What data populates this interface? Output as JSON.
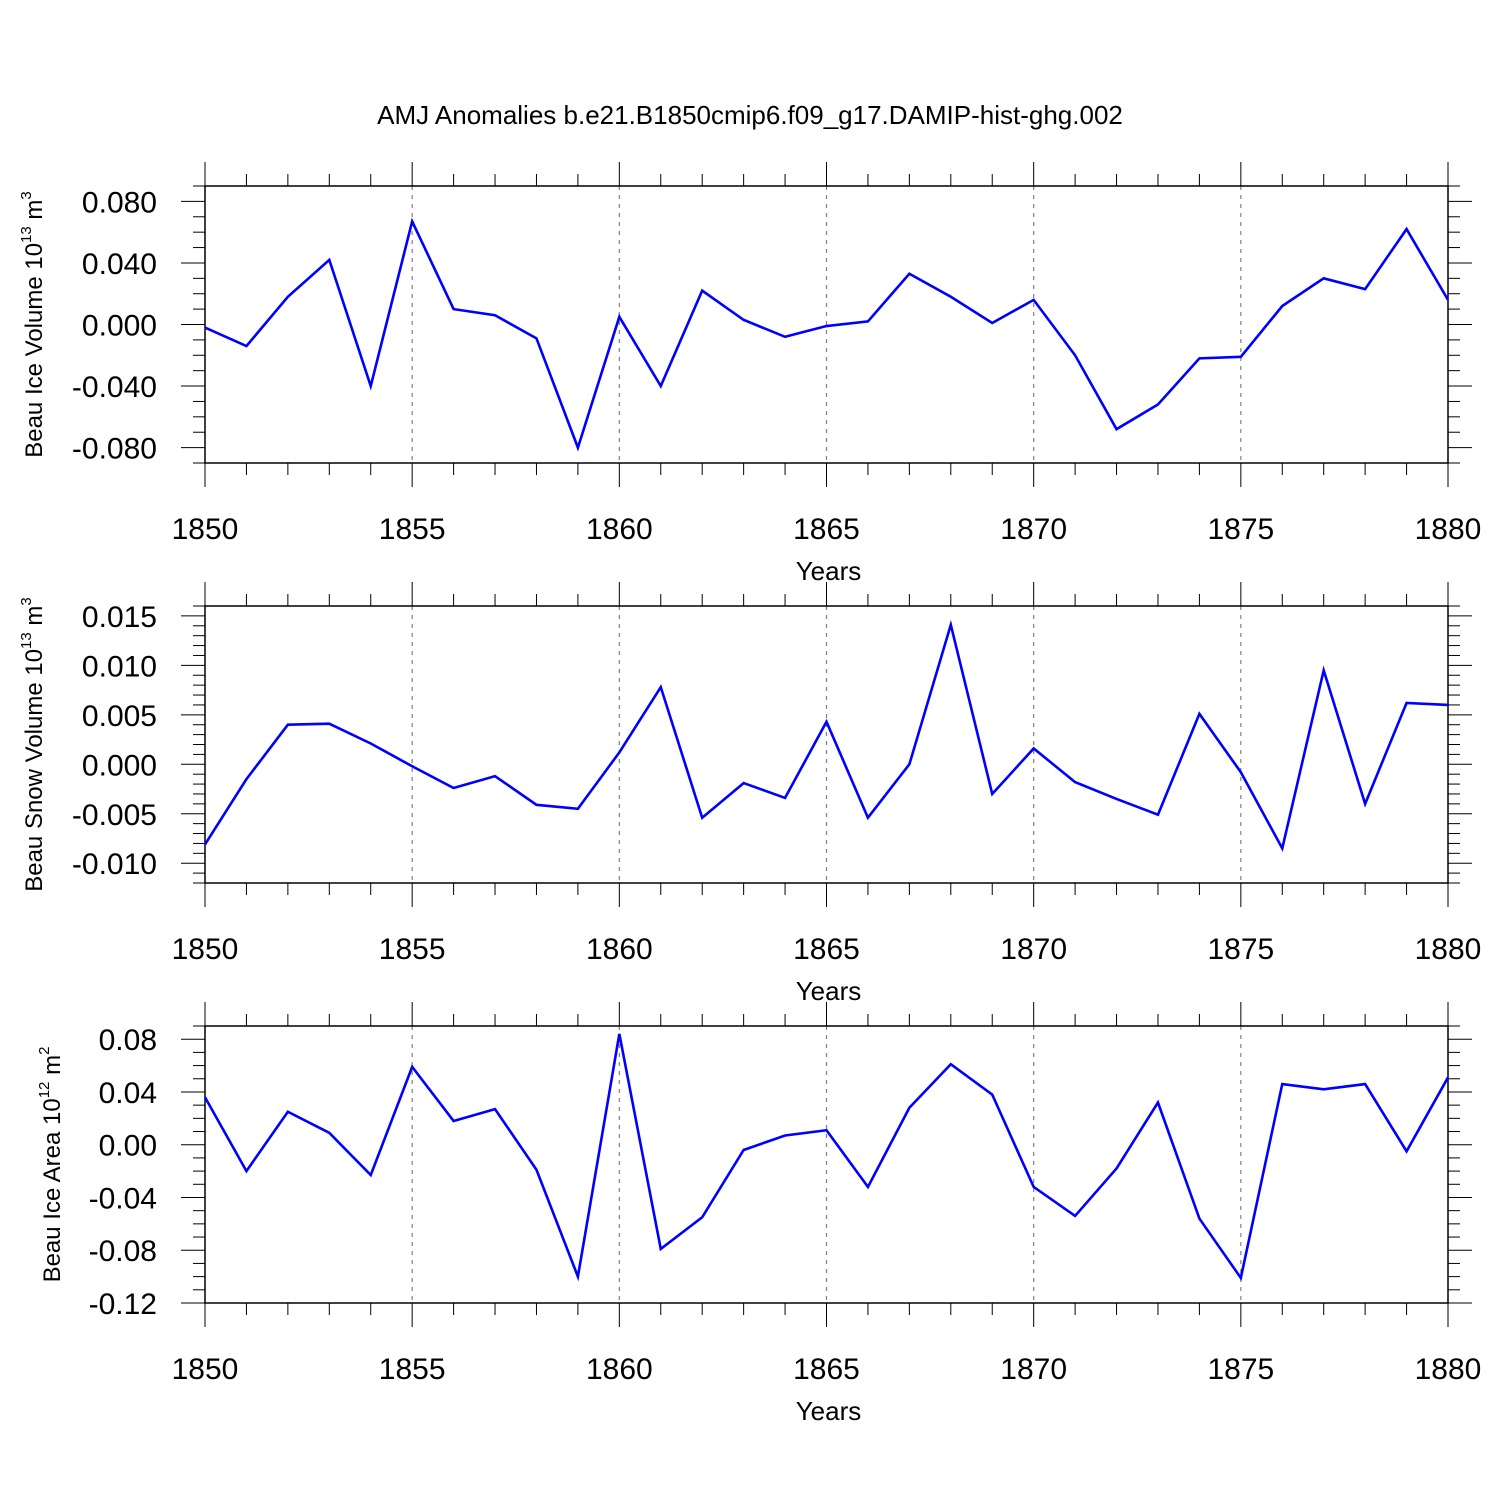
{
  "title": "AMJ Anomalies b.e21.B1850cmip6.f09_g17.DAMIP-hist-ghg.002",
  "colors": {
    "line": "#0000ff",
    "axis": "#000000",
    "grid": "#808080"
  },
  "chart_data": [
    {
      "type": "line",
      "xlabel": "Years",
      "ylabel_main": "Beau Ice Volume 10",
      "ylabel_exp": "13",
      "ylabel_unit": " m",
      "ylabel_unit_exp": "3",
      "xlim": [
        1850,
        1880
      ],
      "ylim": [
        -0.09,
        0.09
      ],
      "x_ticks": [
        1850,
        1855,
        1860,
        1865,
        1870,
        1875,
        1880
      ],
      "x_tick_labels": [
        "1850",
        "1855",
        "1860",
        "1865",
        "1870",
        "1875",
        "1880"
      ],
      "y_ticks": [
        -0.08,
        -0.04,
        0.0,
        0.04,
        0.08
      ],
      "y_tick_labels": [
        "-0.080",
        "-0.040",
        "0.000",
        "0.040",
        "0.080"
      ],
      "y_minor_step": 0.01,
      "grid": "vertical dashed at major x ticks",
      "x": [
        1850,
        1851,
        1852,
        1853,
        1854,
        1855,
        1856,
        1857,
        1858,
        1859,
        1860,
        1861,
        1862,
        1863,
        1864,
        1865,
        1866,
        1867,
        1868,
        1869,
        1870,
        1871,
        1872,
        1873,
        1874,
        1875,
        1876,
        1877,
        1878,
        1879,
        1880
      ],
      "series": [
        {
          "values": [
            -0.002,
            -0.014,
            0.018,
            0.042,
            -0.04,
            0.067,
            0.01,
            0.006,
            -0.009,
            -0.08,
            0.005,
            -0.04,
            0.022,
            0.003,
            -0.008,
            -0.001,
            0.002,
            0.033,
            0.018,
            0.001,
            0.016,
            -0.02,
            -0.068,
            -0.052,
            -0.022,
            -0.021,
            0.012,
            0.03,
            0.023,
            0.062,
            0.016
          ]
        }
      ]
    },
    {
      "type": "line",
      "xlabel": "Years",
      "ylabel_main": "Beau Snow Volume 10",
      "ylabel_exp": "13",
      "ylabel_unit": " m",
      "ylabel_unit_exp": "3",
      "xlim": [
        1850,
        1880
      ],
      "ylim": [
        -0.012,
        0.016
      ],
      "x_ticks": [
        1850,
        1855,
        1860,
        1865,
        1870,
        1875,
        1880
      ],
      "x_tick_labels": [
        "1850",
        "1855",
        "1860",
        "1865",
        "1870",
        "1875",
        "1880"
      ],
      "y_ticks": [
        -0.01,
        -0.005,
        0.0,
        0.005,
        0.01,
        0.015
      ],
      "y_tick_labels": [
        "-0.010",
        "-0.005",
        "0.000",
        "0.005",
        "0.010",
        "0.015"
      ],
      "y_minor_step": 0.001,
      "grid": "vertical dashed at major x ticks",
      "x": [
        1850,
        1851,
        1852,
        1853,
        1854,
        1855,
        1856,
        1857,
        1858,
        1859,
        1860,
        1861,
        1862,
        1863,
        1864,
        1865,
        1866,
        1867,
        1868,
        1869,
        1870,
        1871,
        1872,
        1873,
        1874,
        1875,
        1876,
        1877,
        1878,
        1879,
        1880
      ],
      "series": [
        {
          "values": [
            -0.0081,
            -0.0015,
            0.004,
            0.0041,
            0.0021,
            -0.0002,
            -0.0024,
            -0.0012,
            -0.0041,
            -0.0045,
            0.0012,
            0.0078,
            -0.0054,
            -0.0019,
            -0.0034,
            0.0043,
            -0.0054,
            0.0,
            0.0141,
            -0.003,
            0.0016,
            -0.0018,
            -0.0035,
            -0.0051,
            0.0051,
            -0.0008,
            -0.0085,
            0.0095,
            -0.004,
            0.0062,
            0.006
          ]
        }
      ]
    },
    {
      "type": "line",
      "xlabel": "Years",
      "ylabel_main": "Beau Ice Area 10",
      "ylabel_exp": "12",
      "ylabel_unit": " m",
      "ylabel_unit_exp": "2",
      "xlim": [
        1850,
        1880
      ],
      "ylim": [
        -0.12,
        0.09
      ],
      "x_ticks": [
        1850,
        1855,
        1860,
        1865,
        1870,
        1875,
        1880
      ],
      "x_tick_labels": [
        "1850",
        "1855",
        "1860",
        "1865",
        "1870",
        "1875",
        "1880"
      ],
      "y_ticks": [
        -0.12,
        -0.08,
        -0.04,
        0.0,
        0.04,
        0.08
      ],
      "y_tick_labels": [
        "-0.12",
        "-0.08",
        "-0.04",
        "0.00",
        "0.04",
        "0.08"
      ],
      "y_minor_step": 0.01,
      "grid": "vertical dashed at major x ticks",
      "x": [
        1850,
        1851,
        1852,
        1853,
        1854,
        1855,
        1856,
        1857,
        1858,
        1859,
        1860,
        1861,
        1862,
        1863,
        1864,
        1865,
        1866,
        1867,
        1868,
        1869,
        1870,
        1871,
        1872,
        1873,
        1874,
        1875,
        1876,
        1877,
        1878,
        1879,
        1880
      ],
      "series": [
        {
          "values": [
            0.036,
            -0.02,
            0.025,
            0.009,
            -0.023,
            0.059,
            0.018,
            0.027,
            -0.019,
            -0.1,
            0.084,
            -0.079,
            -0.055,
            -0.004,
            0.007,
            0.011,
            -0.032,
            0.028,
            0.061,
            0.038,
            -0.032,
            -0.054,
            -0.018,
            0.032,
            -0.056,
            -0.101,
            0.046,
            0.042,
            0.046,
            -0.005,
            0.051
          ]
        }
      ]
    }
  ]
}
